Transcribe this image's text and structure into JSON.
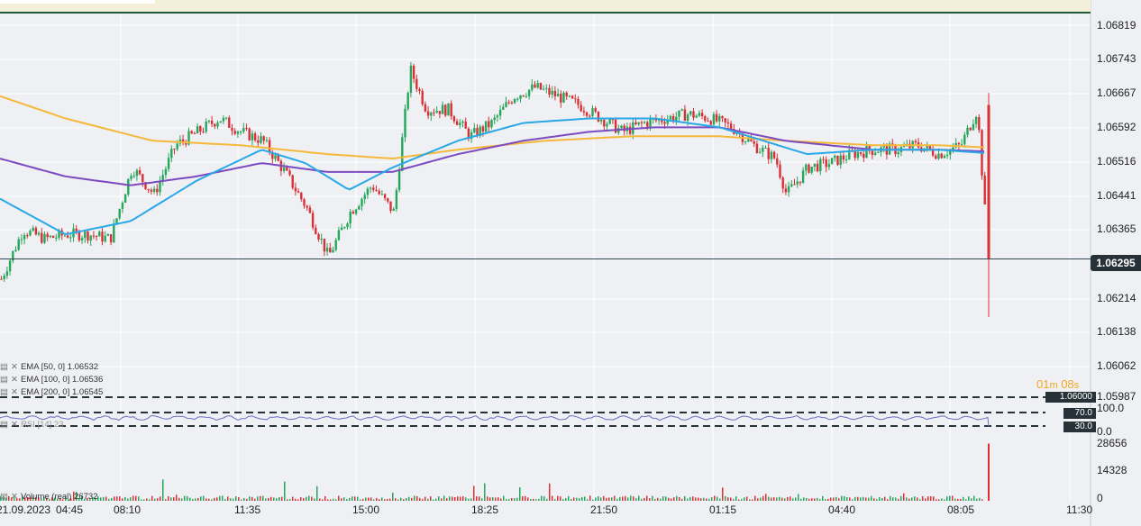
{
  "price_axis": {
    "ticks": [
      "1.06819",
      "1.06743",
      "1.06667",
      "1.06592",
      "1.06516",
      "1.06441",
      "1.06365",
      "1.06214",
      "1.06138",
      "1.06062",
      "1.05987"
    ],
    "current_price": "1.06295",
    "level_marker": "1.06000"
  },
  "rsi_axis": {
    "ticks": [
      "100.0",
      "0.0"
    ],
    "upper_level": "70.0",
    "lower_level": "30.0"
  },
  "volume_axis": {
    "ticks": [
      "28656",
      "14328",
      "0"
    ]
  },
  "time_axis": {
    "ticks": [
      "21.09.2023",
      "04:45",
      "08:10",
      "11:35",
      "15:00",
      "18:25",
      "21:50",
      "01:15",
      "04:40",
      "08:05",
      "11:30"
    ]
  },
  "countdown": {
    "minutes": "01",
    "minutes_unit": "m",
    "seconds": "08",
    "seconds_unit": "s"
  },
  "legends": {
    "ema50": "EMA [50, 0] 1.06532",
    "ema100": "EMA [100, 0] 1.06536",
    "ema200": "EMA [200, 0] 1.06545",
    "rsi": "RSI [14]  23",
    "volume": "Volume  (real)  26732"
  },
  "colors": {
    "up": "#26a65b",
    "down": "#d93035",
    "ema50": "#29a8e8",
    "ema100": "#7b4bbf",
    "ema200": "#f5b83b",
    "rsi": "#6a6fc4",
    "accent_line": "#1c5c3c",
    "tag_bg": "#263238"
  },
  "icons": {
    "legend_settings": "settings-icon",
    "legend_close": "close-icon"
  },
  "chart_data": {
    "type": "candlestick",
    "x_range": [
      "21.09.2023 04:45",
      "22.09.2023 11:30"
    ],
    "y_range": [
      1.0595,
      1.0688
    ],
    "current_price": 1.06295,
    "close_path": [
      [
        0,
        1.0625
      ],
      [
        0.02,
        1.0636
      ],
      [
        0.04,
        1.0634
      ],
      [
        0.06,
        1.0635
      ],
      [
        0.08,
        1.0635
      ],
      [
        0.1,
        1.0634
      ],
      [
        0.12,
        1.065
      ],
      [
        0.14,
        1.0644
      ],
      [
        0.16,
        1.0655
      ],
      [
        0.18,
        1.0658
      ],
      [
        0.2,
        1.0661
      ],
      [
        0.22,
        1.0658
      ],
      [
        0.24,
        1.0656
      ],
      [
        0.26,
        1.0649
      ],
      [
        0.28,
        1.0641
      ],
      [
        0.3,
        1.063
      ],
      [
        0.32,
        1.064
      ],
      [
        0.34,
        1.0646
      ],
      [
        0.36,
        1.064
      ],
      [
        0.375,
        1.0672
      ],
      [
        0.39,
        1.0663
      ],
      [
        0.41,
        1.0663
      ],
      [
        0.43,
        1.0657
      ],
      [
        0.45,
        1.066
      ],
      [
        0.47,
        1.0666
      ],
      [
        0.49,
        1.0668
      ],
      [
        0.51,
        1.0666
      ],
      [
        0.53,
        1.0664
      ],
      [
        0.55,
        1.0661
      ],
      [
        0.57,
        1.0658
      ],
      [
        0.59,
        1.066
      ],
      [
        0.61,
        1.0661
      ],
      [
        0.63,
        1.0662
      ],
      [
        0.65,
        1.0661
      ],
      [
        0.67,
        1.0659
      ],
      [
        0.69,
        1.0655
      ],
      [
        0.71,
        1.0652
      ],
      [
        0.72,
        1.0644
      ],
      [
        0.74,
        1.065
      ],
      [
        0.76,
        1.0651
      ],
      [
        0.78,
        1.0653
      ],
      [
        0.8,
        1.0654
      ],
      [
        0.82,
        1.0654
      ],
      [
        0.84,
        1.0655
      ],
      [
        0.86,
        1.0653
      ],
      [
        0.88,
        1.0655
      ],
      [
        0.895,
        1.0663
      ],
      [
        0.905,
        1.063
      ]
    ],
    "ema50": [
      [
        0,
        1.0643
      ],
      [
        0.06,
        1.0635
      ],
      [
        0.12,
        1.0638
      ],
      [
        0.18,
        1.0647
      ],
      [
        0.24,
        1.0654
      ],
      [
        0.28,
        1.0651
      ],
      [
        0.32,
        1.0645
      ],
      [
        0.36,
        1.065
      ],
      [
        0.42,
        1.0656
      ],
      [
        0.48,
        1.066
      ],
      [
        0.54,
        1.0661
      ],
      [
        0.6,
        1.0661
      ],
      [
        0.66,
        1.0659
      ],
      [
        0.7,
        1.0656
      ],
      [
        0.74,
        1.0653
      ],
      [
        0.8,
        1.0654
      ],
      [
        0.86,
        1.0654
      ],
      [
        0.905,
        1.06532
      ]
    ],
    "ema100": [
      [
        0,
        1.0652
      ],
      [
        0.06,
        1.0648
      ],
      [
        0.12,
        1.0646
      ],
      [
        0.18,
        1.0648
      ],
      [
        0.24,
        1.0651
      ],
      [
        0.3,
        1.0649
      ],
      [
        0.36,
        1.0649
      ],
      [
        0.42,
        1.0653
      ],
      [
        0.48,
        1.0656
      ],
      [
        0.54,
        1.0658
      ],
      [
        0.6,
        1.0659
      ],
      [
        0.66,
        1.0659
      ],
      [
        0.72,
        1.0656
      ],
      [
        0.8,
        1.0654
      ],
      [
        0.86,
        1.0654
      ],
      [
        0.905,
        1.06536
      ]
    ],
    "ema200": [
      [
        0,
        1.0666
      ],
      [
        0.06,
        1.0661
      ],
      [
        0.14,
        1.0656
      ],
      [
        0.22,
        1.0655
      ],
      [
        0.3,
        1.0653
      ],
      [
        0.36,
        1.0652
      ],
      [
        0.42,
        1.0654
      ],
      [
        0.5,
        1.0656
      ],
      [
        0.58,
        1.0657
      ],
      [
        0.66,
        1.0657
      ],
      [
        0.72,
        1.0656
      ],
      [
        0.8,
        1.0655
      ],
      [
        0.86,
        1.0655
      ],
      [
        0.905,
        1.06545
      ]
    ],
    "volume_spike": 28656,
    "volume_last": 26732
  }
}
